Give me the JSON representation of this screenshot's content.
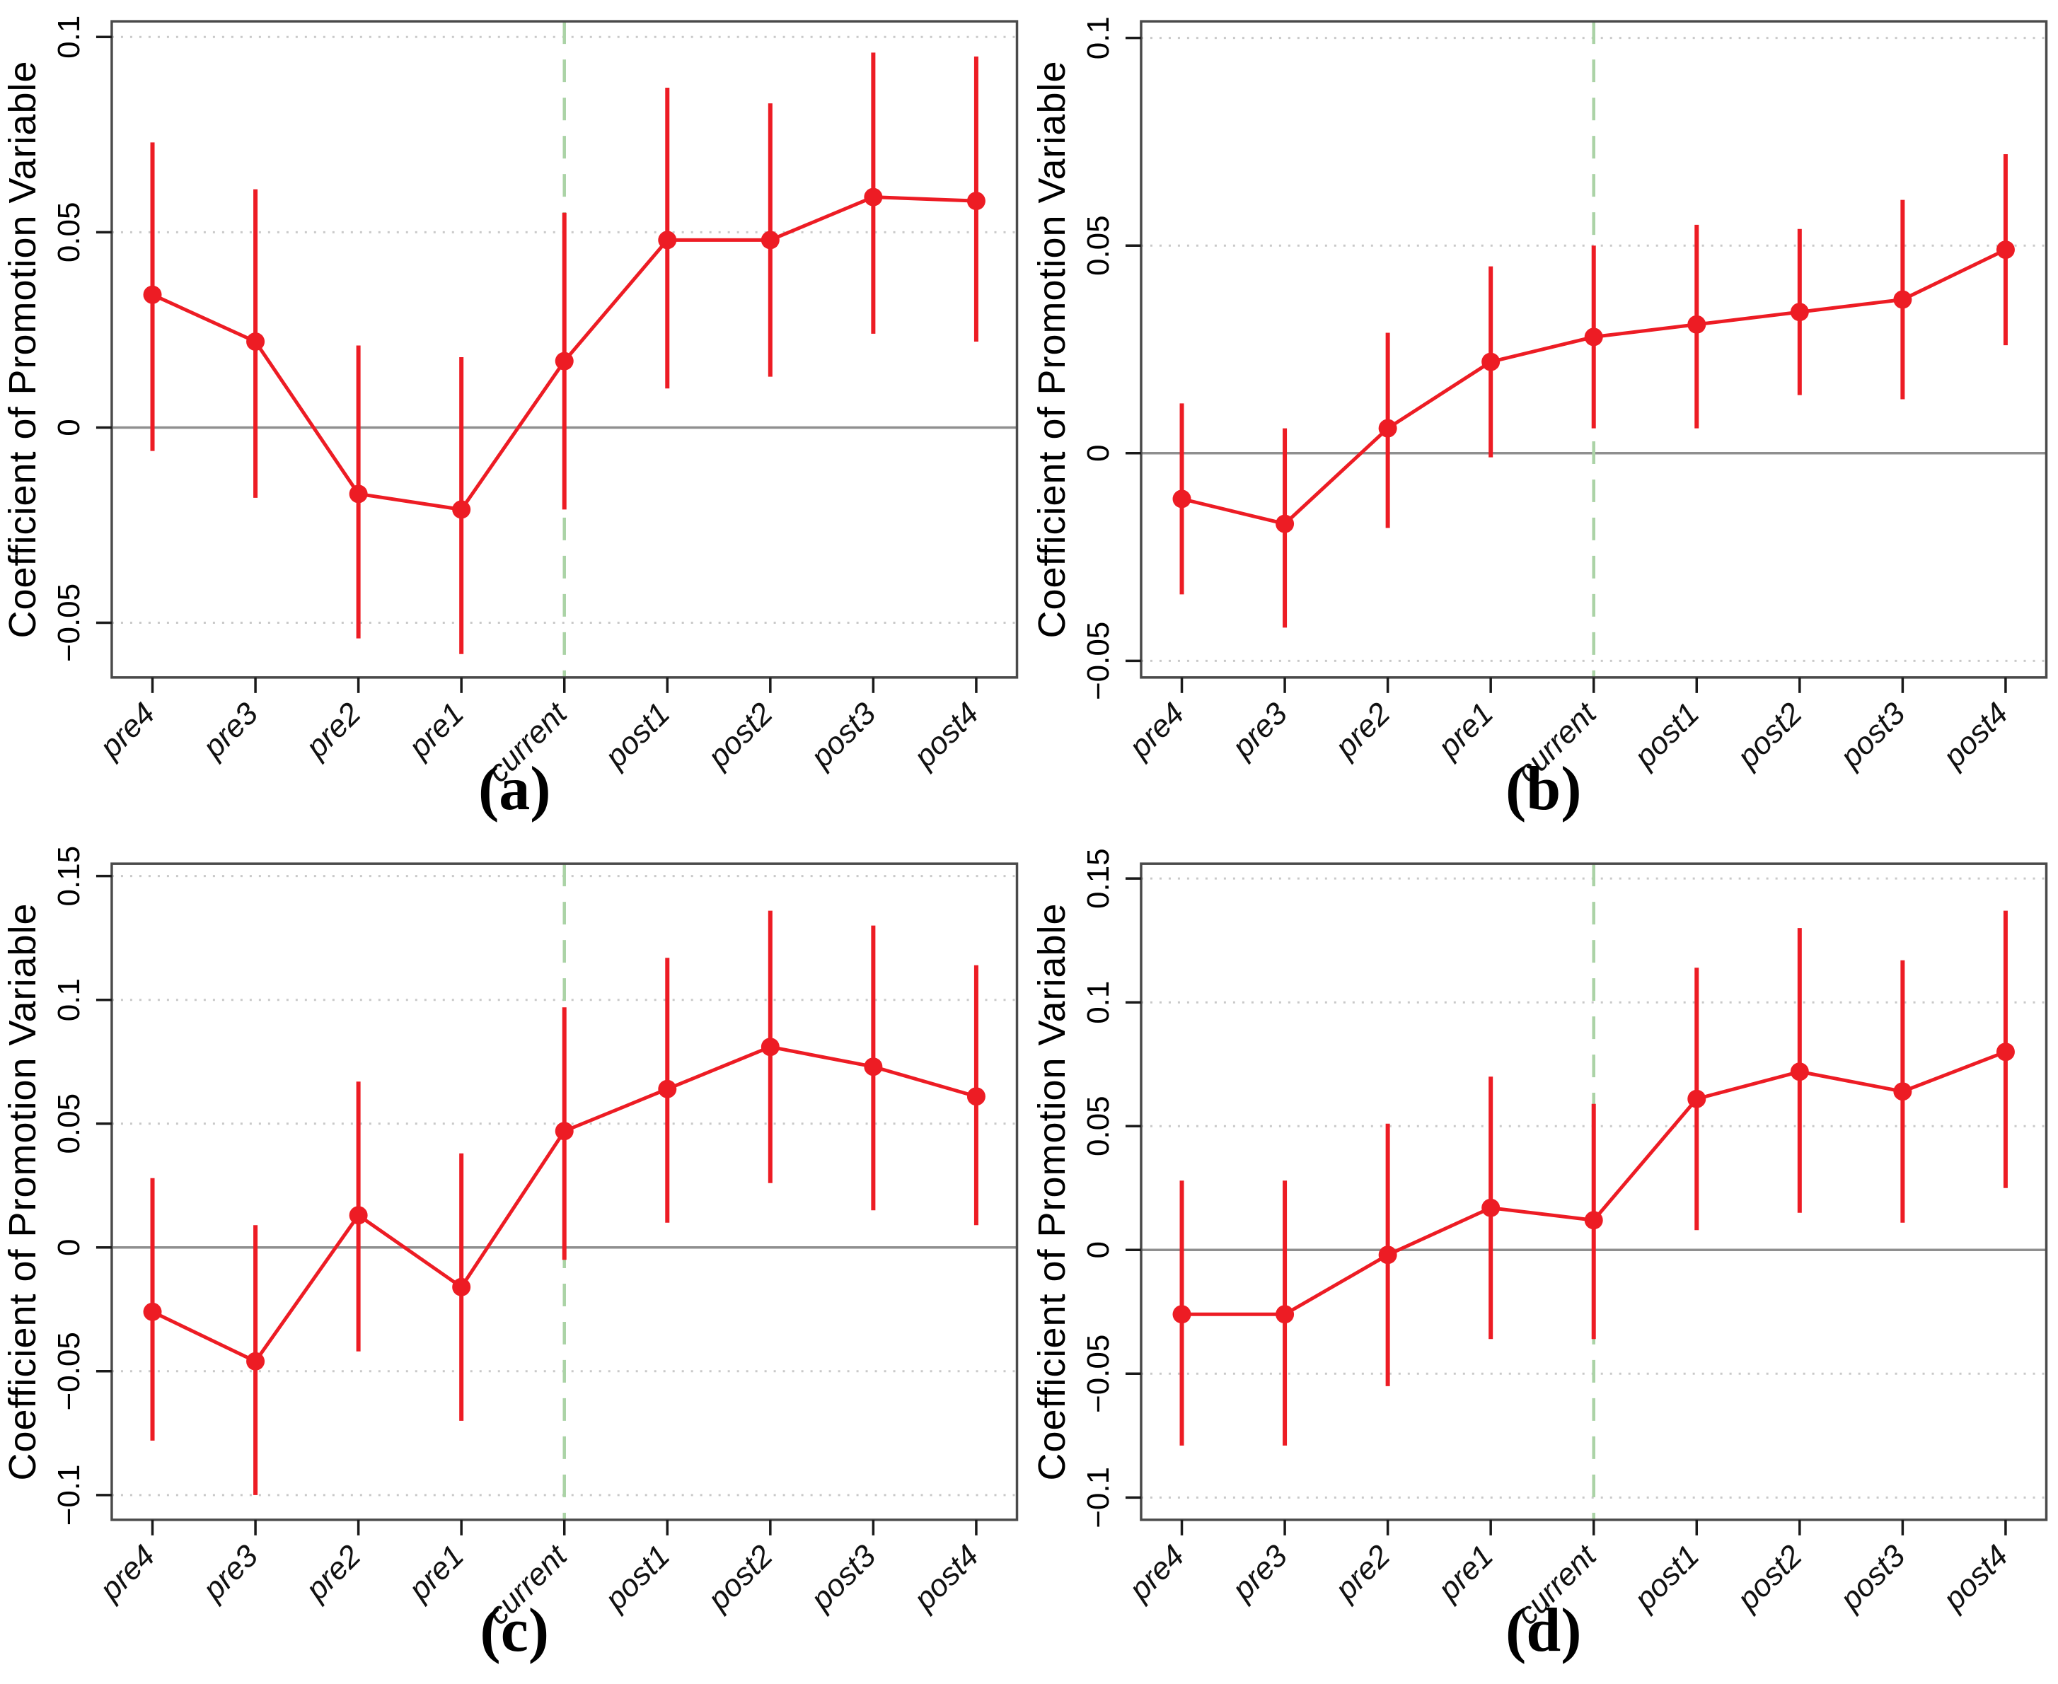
{
  "figure": {
    "background": "#ffffff",
    "ylabel": "Coefficient of Promotion Variable",
    "xlabel": "",
    "categories": [
      "pre4",
      "pre3",
      "pre2",
      "pre1",
      "current",
      "post1",
      "post2",
      "post3",
      "post4"
    ],
    "event_line_category": "current",
    "legend": "none",
    "grid": "dotted horizontal",
    "colors": {
      "series": "#ED1C24",
      "event_line": "#ABD3A6",
      "zero_line": "#8F8F8F",
      "gridline": "#C9C9C9",
      "border": "#4A4A4A",
      "tick": "#1A1A1A",
      "text": "#000000"
    }
  },
  "chart_data": [
    {
      "type": "line",
      "label": "(a)",
      "title": "",
      "xlabel": "",
      "ylabel": "Coefficient of Promotion Variable",
      "categories": [
        "pre4",
        "pre3",
        "pre2",
        "pre1",
        "current",
        "post1",
        "post2",
        "post3",
        "post4"
      ],
      "ylim": [
        -0.064,
        0.104
      ],
      "yticks": [
        0.1,
        0.05,
        0,
        -0.05
      ],
      "ytick_labels": [
        "0.1",
        "0.05",
        "0",
        "−0.05"
      ],
      "vline_at": "current",
      "series": [
        {
          "name": "coefficient",
          "values": [
            0.034,
            0.022,
            -0.017,
            -0.021,
            0.017,
            0.048,
            0.048,
            0.059,
            0.058
          ]
        },
        {
          "name": "ci_lower",
          "values": [
            -0.006,
            -0.018,
            -0.054,
            -0.058,
            -0.021,
            0.01,
            0.013,
            0.024,
            0.022
          ]
        },
        {
          "name": "ci_upper",
          "values": [
            0.073,
            0.061,
            0.021,
            0.018,
            0.055,
            0.087,
            0.083,
            0.096,
            0.095
          ]
        }
      ]
    },
    {
      "type": "line",
      "label": "(b)",
      "title": "",
      "xlabel": "",
      "ylabel": "Coefficient of Promotion Variable",
      "categories": [
        "pre4",
        "pre3",
        "pre2",
        "pre1",
        "current",
        "post1",
        "post2",
        "post3",
        "post4"
      ],
      "ylim": [
        -0.054,
        0.104
      ],
      "yticks": [
        0.1,
        0.05,
        0,
        -0.05
      ],
      "ytick_labels": [
        "0.1",
        "0.05",
        "0",
        "−0.05"
      ],
      "vline_at": "current",
      "series": [
        {
          "name": "coefficient",
          "values": [
            -0.011,
            -0.017,
            0.006,
            0.022,
            0.028,
            0.031,
            0.034,
            0.037,
            0.049
          ]
        },
        {
          "name": "ci_lower",
          "values": [
            -0.034,
            -0.042,
            -0.018,
            -0.001,
            0.006,
            0.006,
            0.014,
            0.013,
            0.026
          ]
        },
        {
          "name": "ci_upper",
          "values": [
            0.012,
            0.006,
            0.029,
            0.045,
            0.05,
            0.055,
            0.054,
            0.061,
            0.072
          ]
        }
      ]
    },
    {
      "type": "line",
      "label": "(c)",
      "title": "",
      "xlabel": "",
      "ylabel": "Coefficient of Promotion Variable",
      "categories": [
        "pre4",
        "pre3",
        "pre2",
        "pre1",
        "current",
        "post1",
        "post2",
        "post3",
        "post4"
      ],
      "ylim": [
        -0.11,
        0.155
      ],
      "yticks": [
        0.15,
        0.1,
        0.05,
        0,
        -0.05,
        -0.1
      ],
      "ytick_labels": [
        "0.15",
        "0.1",
        "0.05",
        "0",
        "−0.05",
        "−0.1"
      ],
      "vline_at": "current",
      "series": [
        {
          "name": "coefficient",
          "values": [
            -0.026,
            -0.046,
            0.013,
            -0.016,
            0.047,
            0.064,
            0.081,
            0.073,
            0.061
          ]
        },
        {
          "name": "ci_lower",
          "values": [
            -0.078,
            -0.1,
            -0.042,
            -0.07,
            -0.005,
            0.01,
            0.026,
            0.015,
            0.009
          ]
        },
        {
          "name": "ci_upper",
          "values": [
            0.028,
            0.009,
            0.067,
            0.038,
            0.097,
            0.117,
            0.136,
            0.13,
            0.114
          ]
        }
      ]
    },
    {
      "type": "line",
      "label": "(d)",
      "title": "",
      "xlabel": "",
      "ylabel": "Coefficient of Promotion Variable",
      "categories": [
        "pre4",
        "pre3",
        "pre2",
        "pre1",
        "current",
        "post1",
        "post2",
        "post3",
        "post4"
      ],
      "ylim": [
        -0.109,
        0.156
      ],
      "yticks": [
        0.15,
        0.1,
        0.05,
        0,
        -0.05,
        -0.1
      ],
      "ytick_labels": [
        "0.15",
        "0.1",
        "0.05",
        "0",
        "−0.05",
        "−0.1"
      ],
      "vline_at": "current",
      "series": [
        {
          "name": "coefficient",
          "values": [
            -0.026,
            -0.026,
            -0.002,
            0.017,
            0.012,
            0.061,
            0.072,
            0.064,
            0.08
          ]
        },
        {
          "name": "ci_lower",
          "values": [
            -0.079,
            -0.079,
            -0.055,
            -0.036,
            -0.036,
            0.008,
            0.015,
            0.011,
            0.025
          ]
        },
        {
          "name": "ci_upper",
          "values": [
            0.028,
            0.028,
            0.051,
            0.07,
            0.059,
            0.114,
            0.13,
            0.117,
            0.137
          ]
        }
      ]
    }
  ]
}
